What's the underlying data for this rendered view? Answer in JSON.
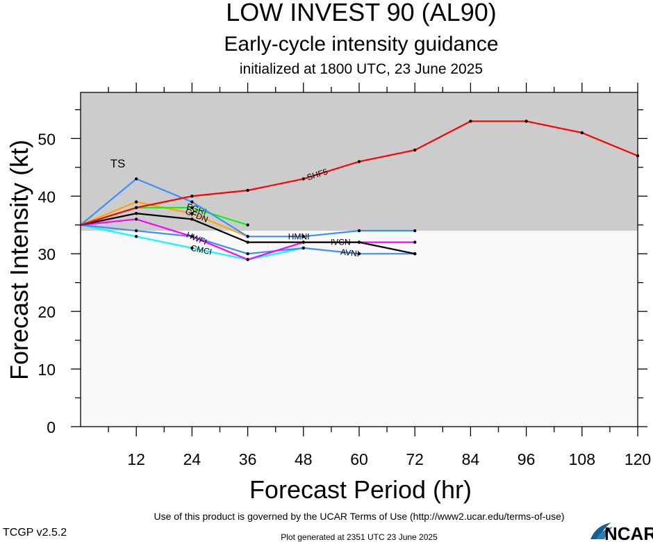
{
  "header": {
    "title": "LOW INVEST 90 (AL90)",
    "subtitle": "Early-cycle intensity guidance",
    "init_line": "initialized at 1800 UTC, 23 June 2025"
  },
  "footer": {
    "terms": "Use of this product is governed by the UCAR Terms of Use (http://www2.ucar.edu/terms-of-use)",
    "version": "TCGP v2.5.2",
    "generated": "Plot generated at 2351 UTC   23 June 2025",
    "logo_text": "NCAR"
  },
  "chart_data": {
    "type": "line",
    "xlabel": "Forecast Period (hr)",
    "ylabel": "Forecast Intensity (kt)",
    "xlim": [
      0,
      120
    ],
    "ylim": [
      0,
      58
    ],
    "x_ticks": [
      12,
      24,
      36,
      48,
      60,
      72,
      84,
      96,
      108,
      120
    ],
    "y_ticks": [
      0,
      10,
      20,
      30,
      40,
      50
    ],
    "shade_threshold": 34,
    "shade_label": "TS",
    "shade_color": "#cccccc",
    "background_color": "#f8f8f8",
    "series": [
      {
        "name": "CMCI",
        "color": "#00ffff",
        "x": [
          0,
          12,
          24,
          36,
          48
        ],
        "y": [
          35,
          33,
          31,
          29,
          31
        ],
        "label_x": 26
      },
      {
        "name": "AVNI",
        "color": "#3a8fff",
        "x": [
          0,
          12,
          24,
          36,
          48,
          60,
          72
        ],
        "y": [
          35,
          34,
          33,
          30,
          31,
          30,
          30
        ],
        "label_x": 58
      },
      {
        "name": "HWFI",
        "color": "#ff00ff",
        "x": [
          0,
          12,
          24,
          36,
          48,
          60,
          72
        ],
        "y": [
          35,
          36,
          33,
          29,
          32,
          32,
          32
        ],
        "label_x": 25
      },
      {
        "name": "GFDN",
        "color": "#ffa500",
        "x": [
          0,
          12,
          24,
          36
        ],
        "y": [
          35,
          39,
          37,
          33
        ],
        "label_x": 25
      },
      {
        "name": "EGRI",
        "color": "#00ff00",
        "x": [
          0,
          12,
          24,
          36
        ],
        "y": [
          35,
          38,
          38,
          35
        ],
        "label_x": 25
      },
      {
        "name": "IVCN",
        "color": "#000000",
        "x": [
          0,
          12,
          24,
          36,
          48,
          60,
          72
        ],
        "y": [
          35,
          37,
          36,
          32,
          32,
          32,
          30
        ],
        "label_x": 56
      },
      {
        "name": "HMNI",
        "color": "#3a8fff",
        "x": [
          0,
          12,
          24,
          36,
          48,
          60,
          72
        ],
        "y": [
          35,
          43,
          39,
          33,
          33,
          34,
          34
        ],
        "label_x": 47
      },
      {
        "name": "SHF5",
        "color": "#ff0000",
        "x": [
          0,
          12,
          24,
          36,
          48,
          60,
          72,
          84,
          96,
          108,
          120
        ],
        "y": [
          35,
          38,
          40,
          41,
          43,
          46,
          48,
          53,
          53,
          51,
          47
        ],
        "label_x": 51
      }
    ]
  }
}
